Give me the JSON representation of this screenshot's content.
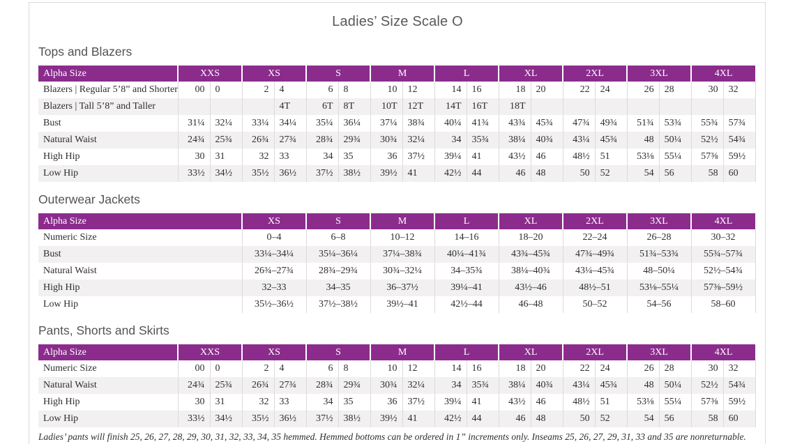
{
  "page": {
    "title": "Ladies’ Size Scale O",
    "footnote": "Ladies’ pants will finish 25, 26, 27, 28, 29, 30, 31, 32, 33, 34, 35 hemmed. Hemmed bottoms can be ordered in 1” increments only. Inseams 25, 26, 27, 29, 31, 33 and 35 are nonreturnable."
  },
  "colors": {
    "header_purple": "#8B2C8D",
    "row_shade": "#F2F0F1",
    "grid_line": "#DCDADB",
    "page_border": "#D9D9D9"
  },
  "tables": [
    {
      "id": "tops-and-blazers",
      "heading": "Tops and Blazers",
      "corner_label": "Alpha Size",
      "paired": true,
      "label_col_width": 200,
      "value_col_width": 46,
      "groups": [
        "XXS",
        "XS",
        "S",
        "M",
        "L",
        "XL",
        "2XL",
        "3XL",
        "4XL"
      ],
      "rows": [
        {
          "label": "Blazers  |  Regular 5’8” and Shorter",
          "values": [
            "00",
            "0",
            "2",
            "4",
            "6",
            "8",
            "10",
            "12",
            "14",
            "16",
            "18",
            "20",
            "22",
            "24",
            "26",
            "28",
            "30",
            "32"
          ]
        },
        {
          "label": "Blazers  |  Tall 5’8” and Taller",
          "values": [
            "",
            "",
            "",
            "4T",
            "6T",
            "8T",
            "10T",
            "12T",
            "14T",
            "16T",
            "18T",
            "",
            "",
            "",
            "",
            "",
            "",
            ""
          ]
        },
        {
          "label": "Bust",
          "values": [
            "31¼",
            "32¼",
            "33¼",
            "34¼",
            "35¼",
            "36¼",
            "37¼",
            "38¾",
            "40¼",
            "41¾",
            "43¾",
            "45¾",
            "47¾",
            "49¾",
            "51¾",
            "53¾",
            "55¾",
            "57¾"
          ]
        },
        {
          "label": "Natural Waist",
          "values": [
            "24¾",
            "25¾",
            "26¾",
            "27¾",
            "28¾",
            "29¾",
            "30¾",
            "32¼",
            "34",
            "35¾",
            "38¼",
            "40¾",
            "43¼",
            "45¾",
            "48",
            "50¼",
            "52½",
            "54¾"
          ]
        },
        {
          "label": "High Hip",
          "values": [
            "30",
            "31",
            "32",
            "33",
            "34",
            "35",
            "36",
            "37½",
            "39¼",
            "41",
            "43½",
            "46",
            "48½",
            "51",
            "53⅛",
            "55¼",
            "57⅜",
            "59½"
          ]
        },
        {
          "label": "Low Hip",
          "values": [
            "33½",
            "34½",
            "35½",
            "36½",
            "37½",
            "38½",
            "39½",
            "41",
            "42½",
            "44",
            "46",
            "48",
            "50",
            "52",
            "54",
            "56",
            "58",
            "60"
          ]
        }
      ]
    },
    {
      "id": "outerwear-jackets",
      "heading": "Outerwear Jackets",
      "corner_label": "Alpha Size",
      "paired": false,
      "label_col_width": 292,
      "value_col_width": 92,
      "groups": [
        "XS",
        "S",
        "M",
        "L",
        "XL",
        "2XL",
        "3XL",
        "4XL"
      ],
      "rows": [
        {
          "label": "Numeric Size",
          "values": [
            "0–4",
            "6–8",
            "10–12",
            "14–16",
            "18–20",
            "22–24",
            "26–28",
            "30–32"
          ]
        },
        {
          "label": "Bust",
          "values": [
            "33¼–34¼",
            "35¼–36¼",
            "37¼–38¾",
            "40¼–41¾",
            "43¾–45¾",
            "47¾–49¾",
            "51¾–53¾",
            "55¾–57¾"
          ]
        },
        {
          "label": "Natural Waist",
          "values": [
            "26¾–27¾",
            "28¾–29¾",
            "30¾–32¼",
            "34–35¾",
            "38¼–40¾",
            "43¼–45¾",
            "48–50¼",
            "52½–54¾"
          ]
        },
        {
          "label": "High Hip",
          "values": [
            "32–33",
            "34–35",
            "36–37½",
            "39¼–41",
            "43½–46",
            "48½–51",
            "53⅛–55¼",
            "57⅜–59½"
          ]
        },
        {
          "label": "Low Hip",
          "values": [
            "35½–36½",
            "37½–38½",
            "39½–41",
            "42½–44",
            "46–48",
            "50–52",
            "54–56",
            "58–60"
          ]
        }
      ]
    },
    {
      "id": "pants-shorts-skirts",
      "heading": "Pants, Shorts and Skirts",
      "corner_label": "Alpha Size",
      "paired": true,
      "label_col_width": 200,
      "value_col_width": 46,
      "groups": [
        "XXS",
        "XS",
        "S",
        "M",
        "L",
        "XL",
        "2XL",
        "3XL",
        "4XL"
      ],
      "rows": [
        {
          "label": "Numeric Size",
          "values": [
            "00",
            "0",
            "2",
            "4",
            "6",
            "8",
            "10",
            "12",
            "14",
            "16",
            "18",
            "20",
            "22",
            "24",
            "26",
            "28",
            "30",
            "32"
          ]
        },
        {
          "label": "Natural Waist",
          "values": [
            "24¾",
            "25¾",
            "26¾",
            "27¾",
            "28¾",
            "29¾",
            "30¾",
            "32¼",
            "34",
            "35¾",
            "38¼",
            "40¾",
            "43¼",
            "45¾",
            "48",
            "50¼",
            "52½",
            "54¾"
          ]
        },
        {
          "label": "High Hip",
          "values": [
            "30",
            "31",
            "32",
            "33",
            "34",
            "35",
            "36",
            "37½",
            "39¼",
            "41",
            "43½",
            "46",
            "48½",
            "51",
            "53⅛",
            "55¼",
            "57⅜",
            "59½"
          ]
        },
        {
          "label": "Low Hip",
          "values": [
            "33½",
            "34½",
            "35½",
            "36½",
            "37½",
            "38½",
            "39½",
            "41",
            "42½",
            "44",
            "46",
            "48",
            "50",
            "52",
            "54",
            "56",
            "58",
            "60"
          ]
        }
      ]
    }
  ]
}
